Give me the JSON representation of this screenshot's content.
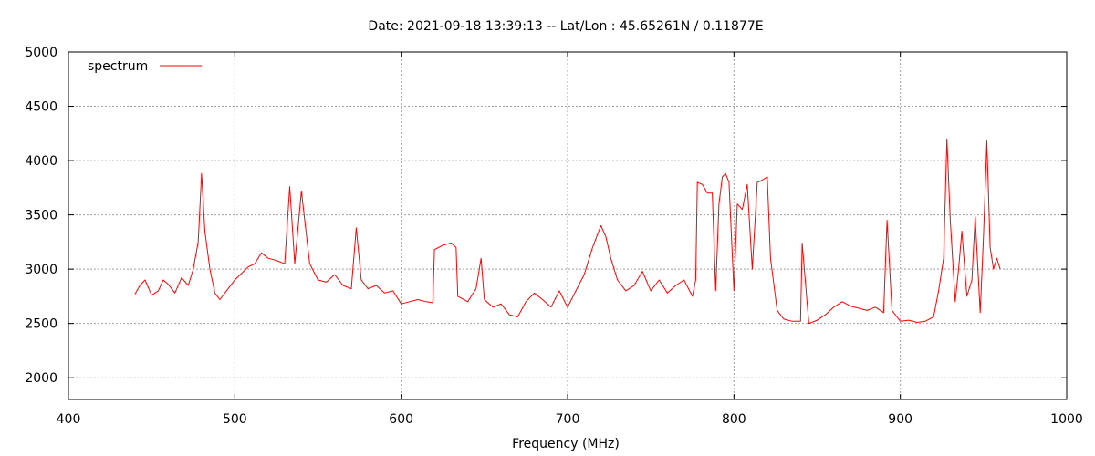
{
  "chart_data": {
    "type": "line",
    "title": "Date: 2021-09-18 13:39:13  --  Lat/Lon : 45.65261N / 0.11877E",
    "xlabel": "Frequency (MHz)",
    "ylabel": "",
    "xlim": [
      400,
      1000
    ],
    "ylim": [
      1800,
      5000
    ],
    "x_ticks": [
      400,
      500,
      600,
      700,
      800,
      900,
      1000
    ],
    "y_ticks": [
      2000,
      2500,
      3000,
      3500,
      4000,
      4500,
      5000
    ],
    "grid": true,
    "legend": {
      "position": "top-left",
      "entries": [
        "spectrum"
      ]
    },
    "series": [
      {
        "name": "spectrum",
        "color": "#ff0000",
        "x": [
          440,
          443,
          446,
          450,
          454,
          457,
          460,
          464,
          468,
          472,
          475,
          478,
          480,
          482,
          485,
          488,
          491,
          495,
          500,
          504,
          508,
          512,
          516,
          520,
          525,
          530,
          533,
          536,
          540,
          545,
          550,
          555,
          560,
          565,
          570,
          573,
          576,
          580,
          585,
          590,
          595,
          600,
          605,
          610,
          615,
          619,
          620,
          625,
          630,
          633,
          634,
          640,
          645,
          648,
          650,
          655,
          660,
          665,
          670,
          675,
          680,
          685,
          690,
          695,
          700,
          705,
          710,
          715,
          720,
          723,
          726,
          730,
          735,
          740,
          745,
          750,
          755,
          760,
          765,
          770,
          775,
          777,
          778,
          781,
          784,
          787,
          789,
          791,
          793,
          795,
          797,
          800,
          802,
          805,
          808,
          811,
          814,
          817,
          820,
          822,
          826,
          830,
          835,
          840,
          841,
          845,
          850,
          855,
          860,
          865,
          870,
          875,
          880,
          885,
          890,
          892,
          895,
          900,
          905,
          910,
          915,
          920,
          923,
          926,
          928,
          930,
          933,
          935,
          937,
          940,
          943,
          945,
          948,
          950,
          952,
          954,
          956,
          958,
          960
        ],
        "values": [
          2770,
          2850,
          2900,
          2760,
          2800,
          2900,
          2860,
          2780,
          2920,
          2850,
          3000,
          3250,
          3880,
          3350,
          3000,
          2780,
          2720,
          2800,
          2900,
          2960,
          3020,
          3050,
          3150,
          3100,
          3080,
          3050,
          3760,
          3050,
          3720,
          3050,
          2900,
          2880,
          2950,
          2850,
          2820,
          3380,
          2900,
          2820,
          2850,
          2780,
          2800,
          2680,
          2700,
          2720,
          2700,
          2690,
          3180,
          3220,
          3240,
          3200,
          2750,
          2700,
          2820,
          3100,
          2720,
          2650,
          2680,
          2580,
          2560,
          2700,
          2780,
          2720,
          2650,
          2800,
          2650,
          2800,
          2950,
          3200,
          3400,
          3300,
          3100,
          2900,
          2800,
          2850,
          2980,
          2800,
          2900,
          2780,
          2850,
          2900,
          2750,
          2900,
          3800,
          3780,
          3700,
          3700,
          2800,
          3600,
          3850,
          3880,
          3800,
          2800,
          3600,
          3550,
          3780,
          3000,
          3800,
          3820,
          3850,
          3100,
          2620,
          2540,
          2520,
          2520,
          3240,
          2500,
          2530,
          2580,
          2650,
          2700,
          2660,
          2640,
          2620,
          2650,
          2600,
          3450,
          2620,
          2520,
          2530,
          2510,
          2520,
          2560,
          2800,
          3100,
          4200,
          3450,
          2700,
          3000,
          3350,
          2750,
          2900,
          3480,
          2600,
          3300,
          4180,
          3200,
          3000,
          3100,
          3000
        ]
      }
    ]
  }
}
